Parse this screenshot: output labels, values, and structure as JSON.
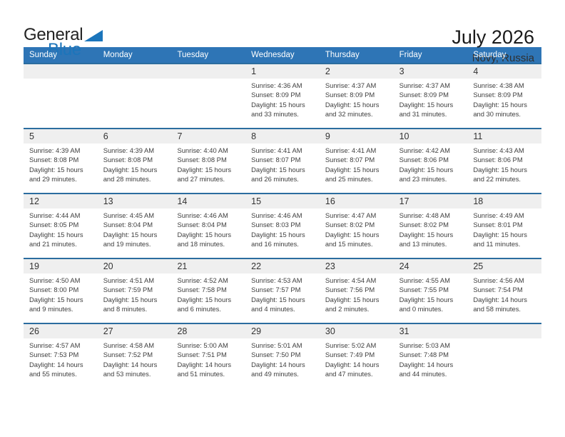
{
  "logo": {
    "general": "General",
    "blue": "Blue"
  },
  "header": {
    "title": "July 2026",
    "location": "Novy, Russia"
  },
  "weekdays": [
    "Sunday",
    "Monday",
    "Tuesday",
    "Wednesday",
    "Thursday",
    "Friday",
    "Saturday"
  ],
  "colors": {
    "header_bar": "#2e75b6",
    "row_divider": "#2b6d9f",
    "day_number_band": "#efefef",
    "logo_blue": "#1b75bb"
  },
  "weeks": [
    [
      null,
      null,
      null,
      {
        "num": "1",
        "sunrise": "Sunrise: 4:36 AM",
        "sunset": "Sunset: 8:09 PM",
        "daylight": "Daylight: 15 hours and 33 minutes."
      },
      {
        "num": "2",
        "sunrise": "Sunrise: 4:37 AM",
        "sunset": "Sunset: 8:09 PM",
        "daylight": "Daylight: 15 hours and 32 minutes."
      },
      {
        "num": "3",
        "sunrise": "Sunrise: 4:37 AM",
        "sunset": "Sunset: 8:09 PM",
        "daylight": "Daylight: 15 hours and 31 minutes."
      },
      {
        "num": "4",
        "sunrise": "Sunrise: 4:38 AM",
        "sunset": "Sunset: 8:09 PM",
        "daylight": "Daylight: 15 hours and 30 minutes."
      }
    ],
    [
      {
        "num": "5",
        "sunrise": "Sunrise: 4:39 AM",
        "sunset": "Sunset: 8:08 PM",
        "daylight": "Daylight: 15 hours and 29 minutes."
      },
      {
        "num": "6",
        "sunrise": "Sunrise: 4:39 AM",
        "sunset": "Sunset: 8:08 PM",
        "daylight": "Daylight: 15 hours and 28 minutes."
      },
      {
        "num": "7",
        "sunrise": "Sunrise: 4:40 AM",
        "sunset": "Sunset: 8:08 PM",
        "daylight": "Daylight: 15 hours and 27 minutes."
      },
      {
        "num": "8",
        "sunrise": "Sunrise: 4:41 AM",
        "sunset": "Sunset: 8:07 PM",
        "daylight": "Daylight: 15 hours and 26 minutes."
      },
      {
        "num": "9",
        "sunrise": "Sunrise: 4:41 AM",
        "sunset": "Sunset: 8:07 PM",
        "daylight": "Daylight: 15 hours and 25 minutes."
      },
      {
        "num": "10",
        "sunrise": "Sunrise: 4:42 AM",
        "sunset": "Sunset: 8:06 PM",
        "daylight": "Daylight: 15 hours and 23 minutes."
      },
      {
        "num": "11",
        "sunrise": "Sunrise: 4:43 AM",
        "sunset": "Sunset: 8:06 PM",
        "daylight": "Daylight: 15 hours and 22 minutes."
      }
    ],
    [
      {
        "num": "12",
        "sunrise": "Sunrise: 4:44 AM",
        "sunset": "Sunset: 8:05 PM",
        "daylight": "Daylight: 15 hours and 21 minutes."
      },
      {
        "num": "13",
        "sunrise": "Sunrise: 4:45 AM",
        "sunset": "Sunset: 8:04 PM",
        "daylight": "Daylight: 15 hours and 19 minutes."
      },
      {
        "num": "14",
        "sunrise": "Sunrise: 4:46 AM",
        "sunset": "Sunset: 8:04 PM",
        "daylight": "Daylight: 15 hours and 18 minutes."
      },
      {
        "num": "15",
        "sunrise": "Sunrise: 4:46 AM",
        "sunset": "Sunset: 8:03 PM",
        "daylight": "Daylight: 15 hours and 16 minutes."
      },
      {
        "num": "16",
        "sunrise": "Sunrise: 4:47 AM",
        "sunset": "Sunset: 8:02 PM",
        "daylight": "Daylight: 15 hours and 15 minutes."
      },
      {
        "num": "17",
        "sunrise": "Sunrise: 4:48 AM",
        "sunset": "Sunset: 8:02 PM",
        "daylight": "Daylight: 15 hours and 13 minutes."
      },
      {
        "num": "18",
        "sunrise": "Sunrise: 4:49 AM",
        "sunset": "Sunset: 8:01 PM",
        "daylight": "Daylight: 15 hours and 11 minutes."
      }
    ],
    [
      {
        "num": "19",
        "sunrise": "Sunrise: 4:50 AM",
        "sunset": "Sunset: 8:00 PM",
        "daylight": "Daylight: 15 hours and 9 minutes."
      },
      {
        "num": "20",
        "sunrise": "Sunrise: 4:51 AM",
        "sunset": "Sunset: 7:59 PM",
        "daylight": "Daylight: 15 hours and 8 minutes."
      },
      {
        "num": "21",
        "sunrise": "Sunrise: 4:52 AM",
        "sunset": "Sunset: 7:58 PM",
        "daylight": "Daylight: 15 hours and 6 minutes."
      },
      {
        "num": "22",
        "sunrise": "Sunrise: 4:53 AM",
        "sunset": "Sunset: 7:57 PM",
        "daylight": "Daylight: 15 hours and 4 minutes."
      },
      {
        "num": "23",
        "sunrise": "Sunrise: 4:54 AM",
        "sunset": "Sunset: 7:56 PM",
        "daylight": "Daylight: 15 hours and 2 minutes."
      },
      {
        "num": "24",
        "sunrise": "Sunrise: 4:55 AM",
        "sunset": "Sunset: 7:55 PM",
        "daylight": "Daylight: 15 hours and 0 minutes."
      },
      {
        "num": "25",
        "sunrise": "Sunrise: 4:56 AM",
        "sunset": "Sunset: 7:54 PM",
        "daylight": "Daylight: 14 hours and 58 minutes."
      }
    ],
    [
      {
        "num": "26",
        "sunrise": "Sunrise: 4:57 AM",
        "sunset": "Sunset: 7:53 PM",
        "daylight": "Daylight: 14 hours and 55 minutes."
      },
      {
        "num": "27",
        "sunrise": "Sunrise: 4:58 AM",
        "sunset": "Sunset: 7:52 PM",
        "daylight": "Daylight: 14 hours and 53 minutes."
      },
      {
        "num": "28",
        "sunrise": "Sunrise: 5:00 AM",
        "sunset": "Sunset: 7:51 PM",
        "daylight": "Daylight: 14 hours and 51 minutes."
      },
      {
        "num": "29",
        "sunrise": "Sunrise: 5:01 AM",
        "sunset": "Sunset: 7:50 PM",
        "daylight": "Daylight: 14 hours and 49 minutes."
      },
      {
        "num": "30",
        "sunrise": "Sunrise: 5:02 AM",
        "sunset": "Sunset: 7:49 PM",
        "daylight": "Daylight: 14 hours and 47 minutes."
      },
      {
        "num": "31",
        "sunrise": "Sunrise: 5:03 AM",
        "sunset": "Sunset: 7:48 PM",
        "daylight": "Daylight: 14 hours and 44 minutes."
      },
      null
    ]
  ]
}
